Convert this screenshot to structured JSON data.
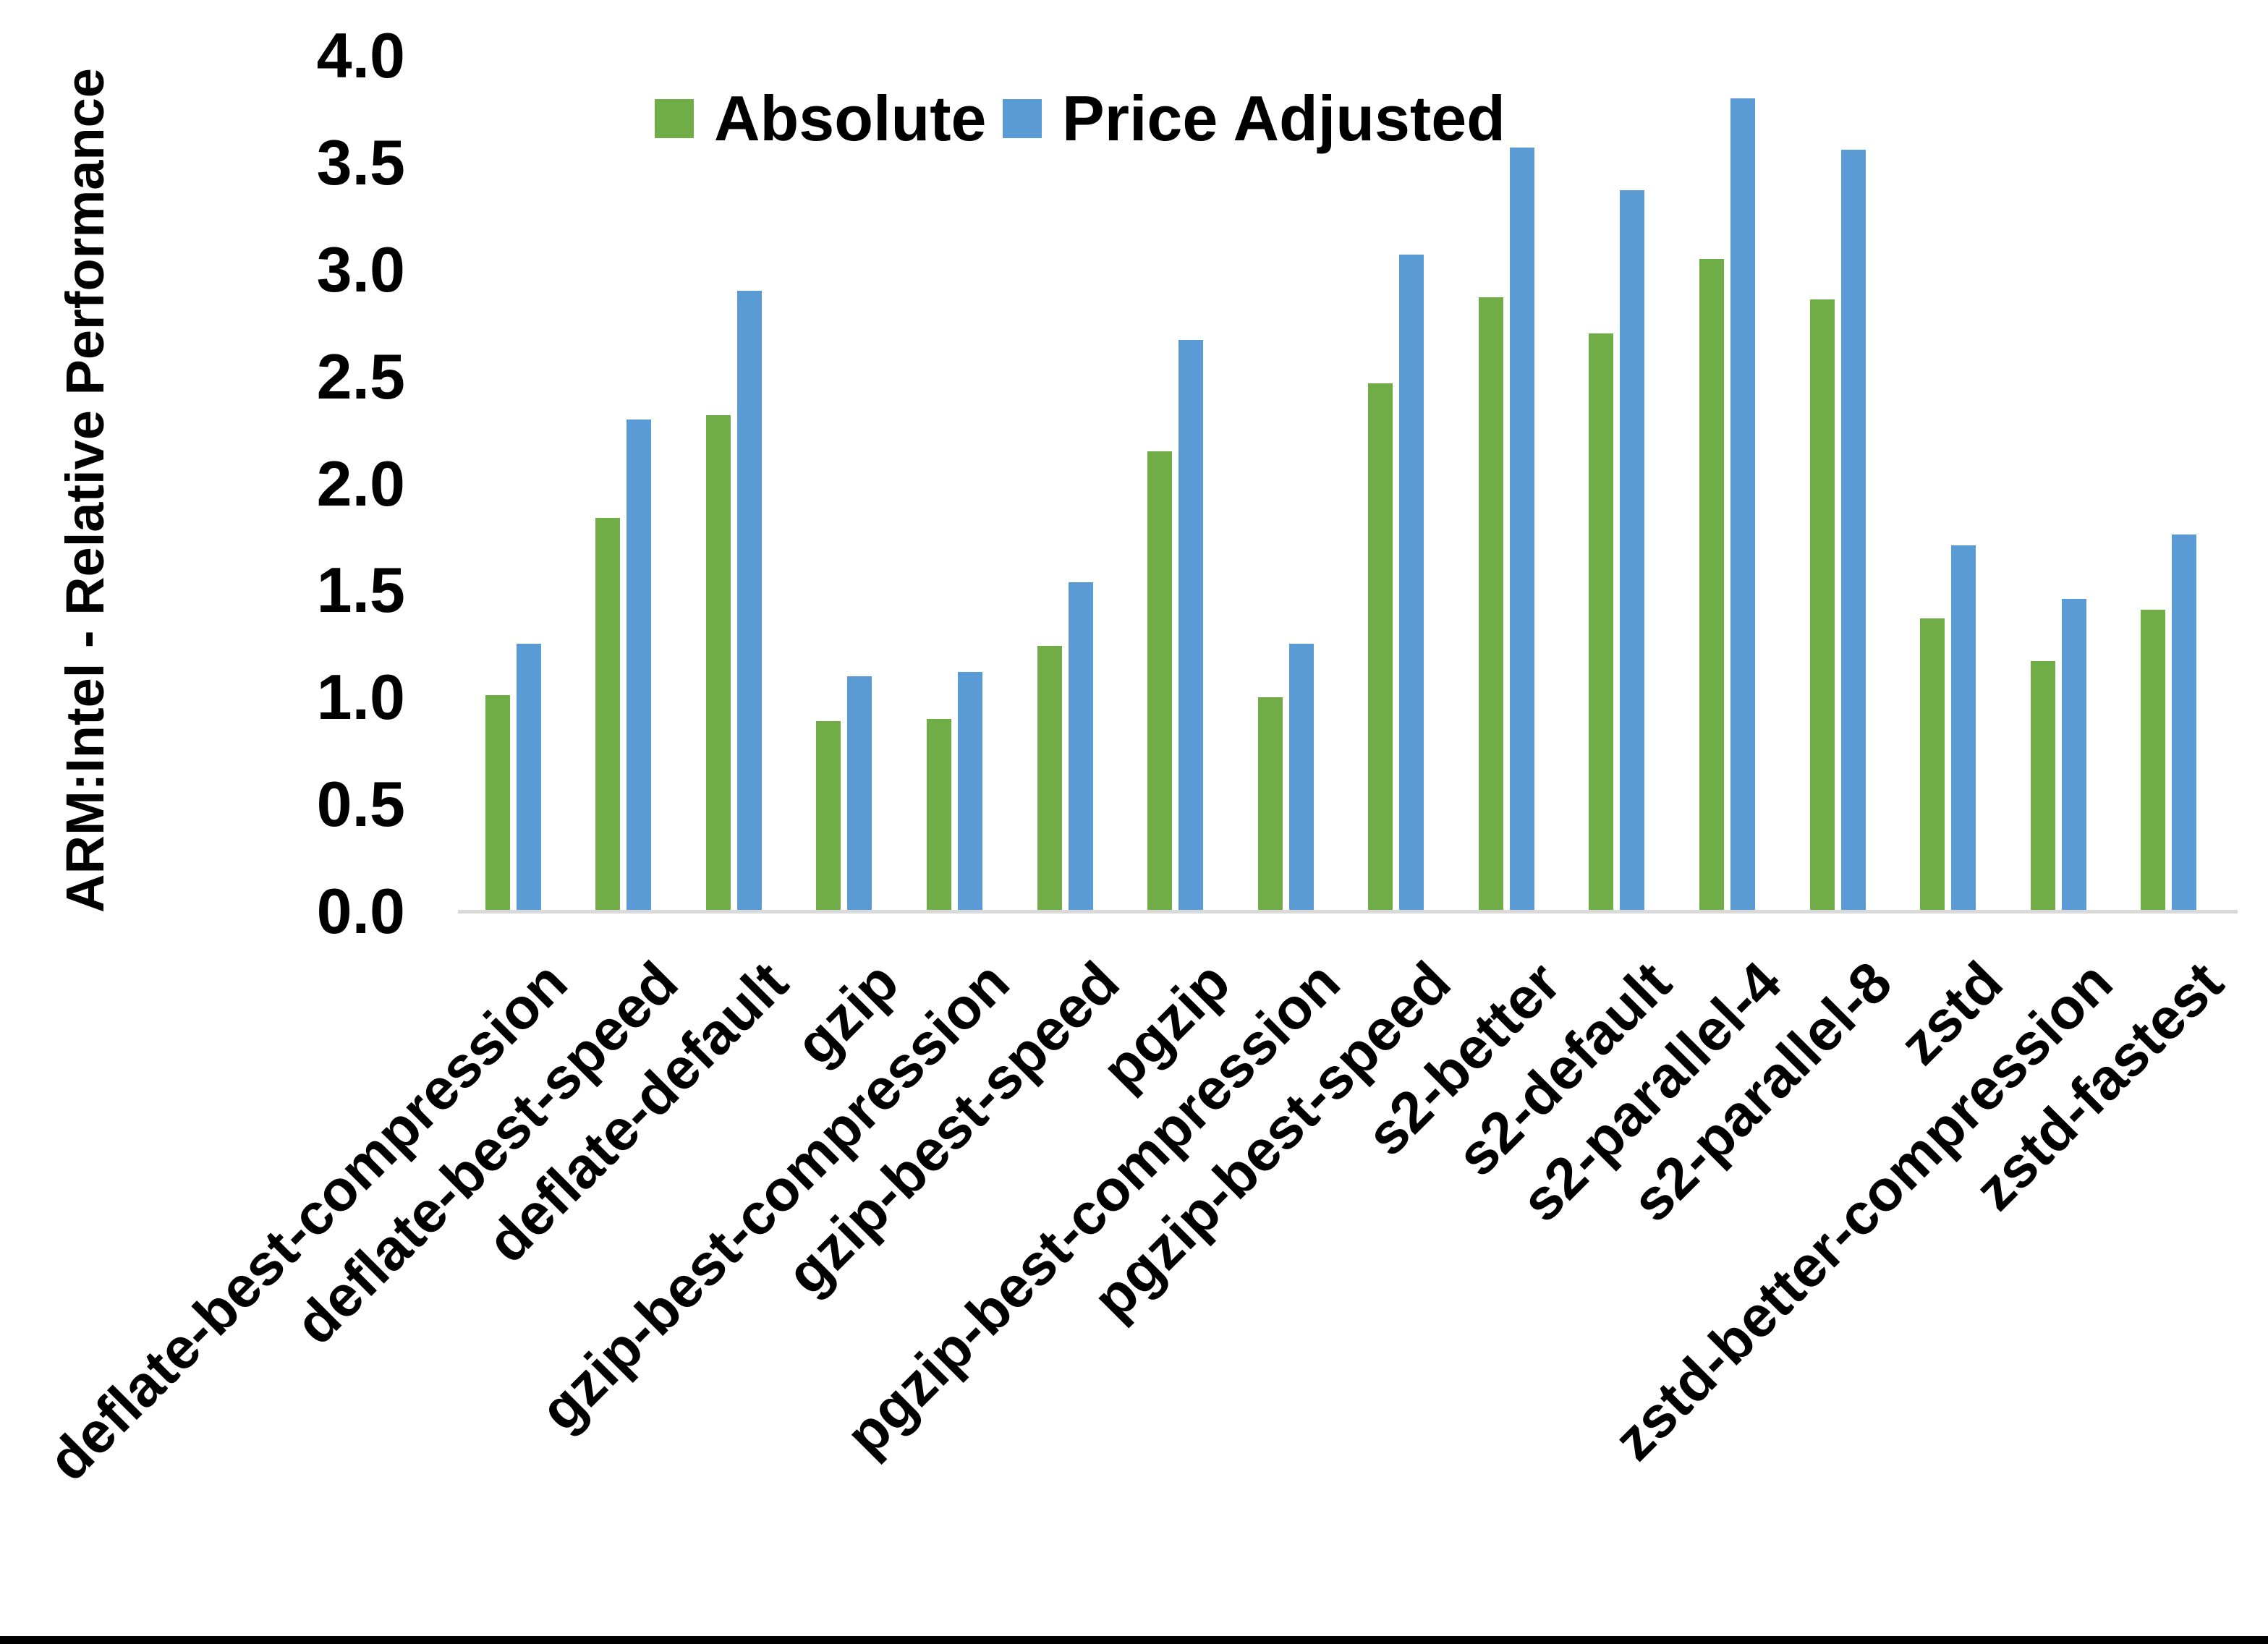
{
  "chart_data": {
    "type": "bar",
    "title": "",
    "xlabel": "",
    "ylabel": "ARM:Intel - Relative Performance",
    "ylim": [
      0.0,
      4.0
    ],
    "ytick_step": 0.5,
    "yticks": [
      "4.0",
      "3.5",
      "3.0",
      "2.5",
      "2.0",
      "1.5",
      "1.0",
      "0.5",
      "0.0"
    ],
    "grid": false,
    "legend_position": "top-center",
    "categories": [
      "deflate-best-compression",
      "deflate-best-speed",
      "deflate-default",
      "gzip",
      "gzip-best-compression",
      "gzip-best-speed",
      "pgzip",
      "pgzip-best-compression",
      "pgzip-best-speed",
      "s2-better",
      "s2-default",
      "s2-parallel-4",
      "s2-parallel-8",
      "zstd",
      "zstd-better-compression",
      "zstd-fastest"
    ],
    "series": [
      {
        "name": "Absolute",
        "color": "#70AD47",
        "values": [
          1.01,
          1.84,
          2.32,
          0.89,
          0.9,
          1.24,
          2.15,
          1.0,
          2.47,
          2.87,
          2.7,
          3.05,
          2.86,
          1.37,
          1.17,
          1.41
        ]
      },
      {
        "name": "Price Adjusted",
        "color": "#5B9BD5",
        "values": [
          1.25,
          2.3,
          2.9,
          1.1,
          1.12,
          1.54,
          2.67,
          1.25,
          3.07,
          3.57,
          3.37,
          3.8,
          3.56,
          1.71,
          1.46,
          1.76
        ]
      }
    ],
    "axis_line_color": "#D9D9D9",
    "text_color": "#000000",
    "background_color": "#FFFFFF"
  }
}
